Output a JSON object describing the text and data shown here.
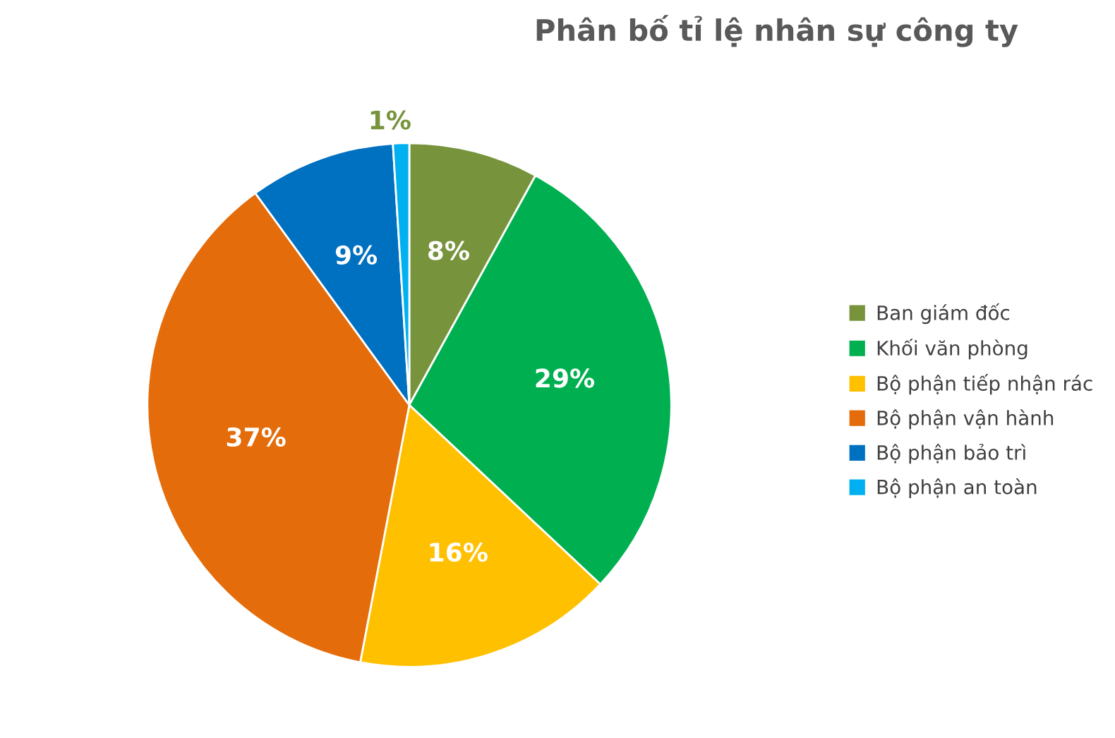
{
  "chart_data": {
    "type": "pie",
    "title": "Phân bố tỉ lệ nhân sự công ty",
    "categories": [
      "Ban giám đốc",
      "Khối văn phòng",
      "Bộ phận tiếp nhận rác",
      "Bộ phận vận hành",
      "Bộ phận bảo trì",
      "Bộ phận an toàn"
    ],
    "values": [
      8,
      29,
      16,
      37,
      9,
      1
    ],
    "colors": [
      "#77933c",
      "#00b050",
      "#ffc000",
      "#e46c0a",
      "#0070c0",
      "#00b0f0"
    ],
    "value_labels": [
      "8%",
      "29%",
      "16%",
      "37%",
      "9%",
      "1%"
    ],
    "legend": "right"
  }
}
